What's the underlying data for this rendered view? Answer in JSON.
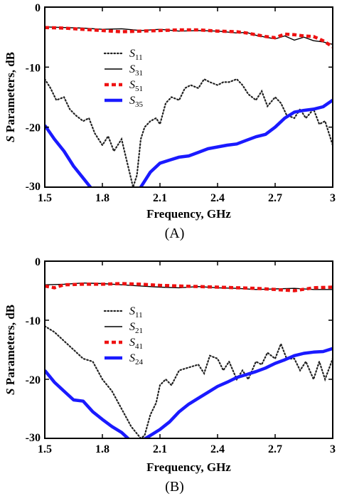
{
  "colors": {
    "s11": "#222222",
    "through": "#000000",
    "reflected": "#ee1111",
    "coupling": "#1a1aff",
    "frame": "#000000"
  },
  "chart_data": [
    {
      "type": "line",
      "panel_label": "(A)",
      "xlabel": "Frequency, GHz",
      "ylabel_italic": "S",
      "ylabel": " Parameters, dB",
      "xlim": [
        1.5,
        3.0
      ],
      "ylim": [
        -30,
        0
      ],
      "xticks": [
        1.5,
        1.8,
        2.1,
        2.4,
        2.7,
        3.0
      ],
      "xtick_labels": [
        "1.5",
        "1.8",
        "2.1",
        "2.4",
        "2.7",
        "3"
      ],
      "yticks": [
        0,
        -10,
        -20,
        -30
      ],
      "ytick_labels": [
        "0",
        "-10",
        "-20",
        "-30"
      ],
      "grid": false,
      "legend_position": "left-center",
      "series": [
        {
          "name_base": "S",
          "name_sub": "11",
          "style": "dotted",
          "x": [
            1.5,
            1.53,
            1.56,
            1.6,
            1.63,
            1.66,
            1.7,
            1.73,
            1.76,
            1.8,
            1.83,
            1.86,
            1.9,
            1.93,
            1.96,
            1.98,
            2.0,
            2.02,
            2.05,
            2.08,
            2.1,
            2.13,
            2.16,
            2.2,
            2.23,
            2.26,
            2.3,
            2.33,
            2.36,
            2.4,
            2.43,
            2.46,
            2.5,
            2.53,
            2.56,
            2.6,
            2.63,
            2.66,
            2.7,
            2.73,
            2.76,
            2.8,
            2.83,
            2.86,
            2.9,
            2.93,
            2.96,
            3.0
          ],
          "y": [
            -12,
            -13.5,
            -15.5,
            -15,
            -17,
            -18,
            -19,
            -18.5,
            -21,
            -23,
            -21.5,
            -24,
            -22,
            -26,
            -30,
            -28,
            -22,
            -20,
            -19,
            -18.5,
            -19.5,
            -16,
            -15,
            -15.5,
            -13.5,
            -13,
            -13.5,
            -12,
            -12.5,
            -13,
            -12.5,
            -12.5,
            -12,
            -13,
            -14.5,
            -15.5,
            -14,
            -16.5,
            -15,
            -16,
            -18,
            -18.5,
            -17,
            -18.5,
            -17,
            -19.5,
            -19,
            -23
          ]
        },
        {
          "name_base": "S",
          "name_sub": "31",
          "style": "solid-thin",
          "x": [
            1.5,
            1.6,
            1.7,
            1.8,
            1.9,
            2.0,
            2.1,
            2.2,
            2.3,
            2.4,
            2.5,
            2.55,
            2.6,
            2.65,
            2.7,
            2.75,
            2.8,
            2.85,
            2.9,
            2.95,
            3.0
          ],
          "y": [
            -3.3,
            -3.4,
            -3.5,
            -3.7,
            -3.6,
            -3.9,
            -3.7,
            -4.0,
            -3.9,
            -4.0,
            -4.3,
            -4.2,
            -4.7,
            -5.0,
            -5.3,
            -4.8,
            -5.5,
            -5.0,
            -5.6,
            -5.8,
            -6.2
          ]
        },
        {
          "name_base": "S",
          "name_sub": "51",
          "style": "dashed-red",
          "x": [
            1.5,
            1.6,
            1.7,
            1.8,
            1.9,
            2.0,
            2.1,
            2.2,
            2.3,
            2.4,
            2.5,
            2.55,
            2.6,
            2.65,
            2.7,
            2.75,
            2.8,
            2.85,
            2.9,
            2.95,
            3.0
          ],
          "y": [
            -3.4,
            -3.5,
            -3.7,
            -3.9,
            -4.1,
            -4.0,
            -3.9,
            -3.8,
            -3.8,
            -4.0,
            -4.1,
            -4.3,
            -4.6,
            -4.9,
            -5.1,
            -4.5,
            -4.6,
            -4.8,
            -4.9,
            -5.6,
            -6.6
          ]
        },
        {
          "name_base": "S",
          "name_sub": "35",
          "style": "thick-blue",
          "x": [
            1.5,
            1.55,
            1.6,
            1.65,
            1.7,
            1.75,
            1.8,
            1.85,
            1.9,
            1.95,
            2.0,
            2.05,
            2.1,
            2.15,
            2.2,
            2.25,
            2.3,
            2.35,
            2.4,
            2.45,
            2.5,
            2.55,
            2.6,
            2.65,
            2.7,
            2.75,
            2.8,
            2.85,
            2.9,
            2.95,
            3.0
          ],
          "y": [
            -19.7,
            -22,
            -24,
            -26.5,
            -28.5,
            -30.5,
            -32.5,
            -34.5,
            -36,
            -33,
            -30,
            -27.5,
            -26,
            -25.5,
            -25,
            -24.8,
            -24.2,
            -23.6,
            -23.3,
            -23,
            -22.8,
            -22.2,
            -21.6,
            -21.2,
            -20,
            -18.5,
            -17.5,
            -17.2,
            -17,
            -16.6,
            -15.5
          ]
        }
      ]
    },
    {
      "type": "line",
      "panel_label": "(B)",
      "xlabel": "Frequency, GHz",
      "ylabel_italic": "S",
      "ylabel": " Parameters, dB",
      "xlim": [
        1.5,
        3.0
      ],
      "ylim": [
        -30,
        0
      ],
      "xticks": [
        1.5,
        1.8,
        2.1,
        2.4,
        2.7,
        3.0
      ],
      "xtick_labels": [
        "1.5",
        "1.8",
        "2.1",
        "2.4",
        "2.7",
        "3"
      ],
      "yticks": [
        0,
        -10,
        -20,
        -30
      ],
      "ytick_labels": [
        "0",
        "-10",
        "-20",
        "-30"
      ],
      "grid": false,
      "legend_position": "left-center",
      "series": [
        {
          "name_base": "S",
          "name_sub": "11",
          "style": "dotted",
          "x": [
            1.5,
            1.55,
            1.6,
            1.65,
            1.7,
            1.75,
            1.8,
            1.85,
            1.9,
            1.95,
            2.0,
            2.02,
            2.05,
            2.08,
            2.1,
            2.13,
            2.16,
            2.2,
            2.25,
            2.3,
            2.33,
            2.36,
            2.4,
            2.43,
            2.46,
            2.5,
            2.53,
            2.56,
            2.6,
            2.63,
            2.66,
            2.7,
            2.73,
            2.76,
            2.8,
            2.83,
            2.86,
            2.9,
            2.93,
            2.96,
            3.0
          ],
          "y": [
            -11,
            -12,
            -13.5,
            -15,
            -16.5,
            -17,
            -20,
            -22,
            -25,
            -28,
            -30,
            -29.5,
            -26,
            -24,
            -21,
            -20,
            -21,
            -18.5,
            -18,
            -17.5,
            -19,
            -16,
            -16.5,
            -18.5,
            -17,
            -20,
            -18.5,
            -20,
            -17,
            -17.5,
            -15.5,
            -16.5,
            -14,
            -16.5,
            -16.5,
            -18.5,
            -17,
            -20,
            -17,
            -20,
            -16.5
          ]
        },
        {
          "name_base": "S",
          "name_sub": "21",
          "style": "solid-thin",
          "x": [
            1.5,
            1.6,
            1.7,
            1.8,
            1.9,
            2.0,
            2.1,
            2.2,
            2.3,
            2.4,
            2.5,
            2.6,
            2.7,
            2.8,
            2.9,
            3.0
          ],
          "y": [
            -4.0,
            -3.9,
            -3.7,
            -3.8,
            -4.0,
            -4.2,
            -4.4,
            -4.5,
            -4.3,
            -4.5,
            -4.6,
            -4.8,
            -4.7,
            -4.6,
            -4.8,
            -4.8
          ]
        },
        {
          "name_base": "S",
          "name_sub": "41",
          "style": "dashed-red",
          "x": [
            1.5,
            1.55,
            1.6,
            1.7,
            1.8,
            1.9,
            2.0,
            2.1,
            2.2,
            2.3,
            2.4,
            2.5,
            2.6,
            2.7,
            2.8,
            2.9,
            3.0
          ],
          "y": [
            -4.2,
            -4.5,
            -4.0,
            -3.9,
            -3.9,
            -3.8,
            -3.9,
            -4.1,
            -4.2,
            -4.3,
            -4.4,
            -4.5,
            -4.6,
            -4.8,
            -5.0,
            -4.5,
            -4.4
          ]
        },
        {
          "name_base": "S",
          "name_sub": "24",
          "style": "thick-blue",
          "x": [
            1.5,
            1.55,
            1.6,
            1.65,
            1.7,
            1.75,
            1.8,
            1.85,
            1.9,
            1.95,
            2.0,
            2.05,
            2.1,
            2.15,
            2.2,
            2.25,
            2.3,
            2.35,
            2.4,
            2.45,
            2.5,
            2.55,
            2.6,
            2.65,
            2.7,
            2.75,
            2.8,
            2.85,
            2.9,
            2.95,
            3.0
          ],
          "y": [
            -18.5,
            -20.5,
            -22,
            -23.5,
            -23.7,
            -25.5,
            -26.8,
            -28,
            -29,
            -30.5,
            -30.5,
            -29.5,
            -28.5,
            -27.2,
            -25.5,
            -24.2,
            -23.2,
            -22.2,
            -21.2,
            -20.5,
            -19.7,
            -19.2,
            -18.7,
            -18.1,
            -17.3,
            -16.7,
            -16,
            -15.6,
            -15.4,
            -15.3,
            -14.8
          ]
        }
      ]
    }
  ]
}
